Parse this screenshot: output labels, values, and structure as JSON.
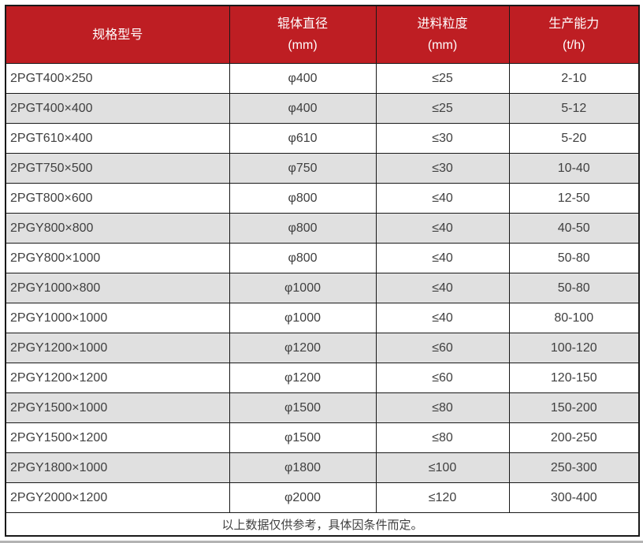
{
  "table": {
    "headers": [
      {
        "title": "规格型号"
      },
      {
        "title": "辊体直径",
        "unit": "(mm)"
      },
      {
        "title": "进料粒度",
        "unit": "(mm)"
      },
      {
        "title": "生产能力",
        "unit": "(t/h)"
      }
    ],
    "rows": [
      {
        "model": "2PGT400×250",
        "diameter": "φ400",
        "feed": "≤25",
        "capacity": "2-10"
      },
      {
        "model": "2PGT400×400",
        "diameter": "φ400",
        "feed": "≤25",
        "capacity": "5-12"
      },
      {
        "model": "2PGT610×400",
        "diameter": "φ610",
        "feed": "≤30",
        "capacity": "5-20"
      },
      {
        "model": "2PGT750×500",
        "diameter": "φ750",
        "feed": "≤30",
        "capacity": "10-40"
      },
      {
        "model": "2PGT800×600",
        "diameter": "φ800",
        "feed": "≤40",
        "capacity": "12-50"
      },
      {
        "model": "2PGY800×800",
        "diameter": "φ800",
        "feed": "≤40",
        "capacity": "40-50"
      },
      {
        "model": "2PGY800×1000",
        "diameter": "φ800",
        "feed": "≤40",
        "capacity": "50-80"
      },
      {
        "model": "2PGY1000×800",
        "diameter": "φ1000",
        "feed": "≤40",
        "capacity": "50-80"
      },
      {
        "model": "2PGY1000×1000",
        "diameter": "φ1000",
        "feed": "≤40",
        "capacity": "80-100"
      },
      {
        "model": "2PGY1200×1000",
        "diameter": "φ1200",
        "feed": "≤60",
        "capacity": "100-120"
      },
      {
        "model": "2PGY1200×1200",
        "diameter": "φ1200",
        "feed": "≤60",
        "capacity": "120-150"
      },
      {
        "model": "2PGY1500×1000",
        "diameter": "φ1500",
        "feed": "≤80",
        "capacity": "150-200"
      },
      {
        "model": "2PGY1500×1200",
        "diameter": "φ1500",
        "feed": "≤80",
        "capacity": "200-250"
      },
      {
        "model": "2PGY1800×1000",
        "diameter": "φ1800",
        "feed": "≤100",
        "capacity": "250-300"
      },
      {
        "model": "2PGY2000×1200",
        "diameter": "φ2000",
        "feed": "≤120",
        "capacity": "300-400"
      }
    ],
    "footnote": "以上数据仅供参考，具体因条件而定。"
  },
  "colors": {
    "header_bg": "#BE1E23",
    "header_text": "#FFFFFF",
    "row_alt_bg": "#E0E0E0",
    "body_text": "#404040",
    "border": "#191919"
  }
}
